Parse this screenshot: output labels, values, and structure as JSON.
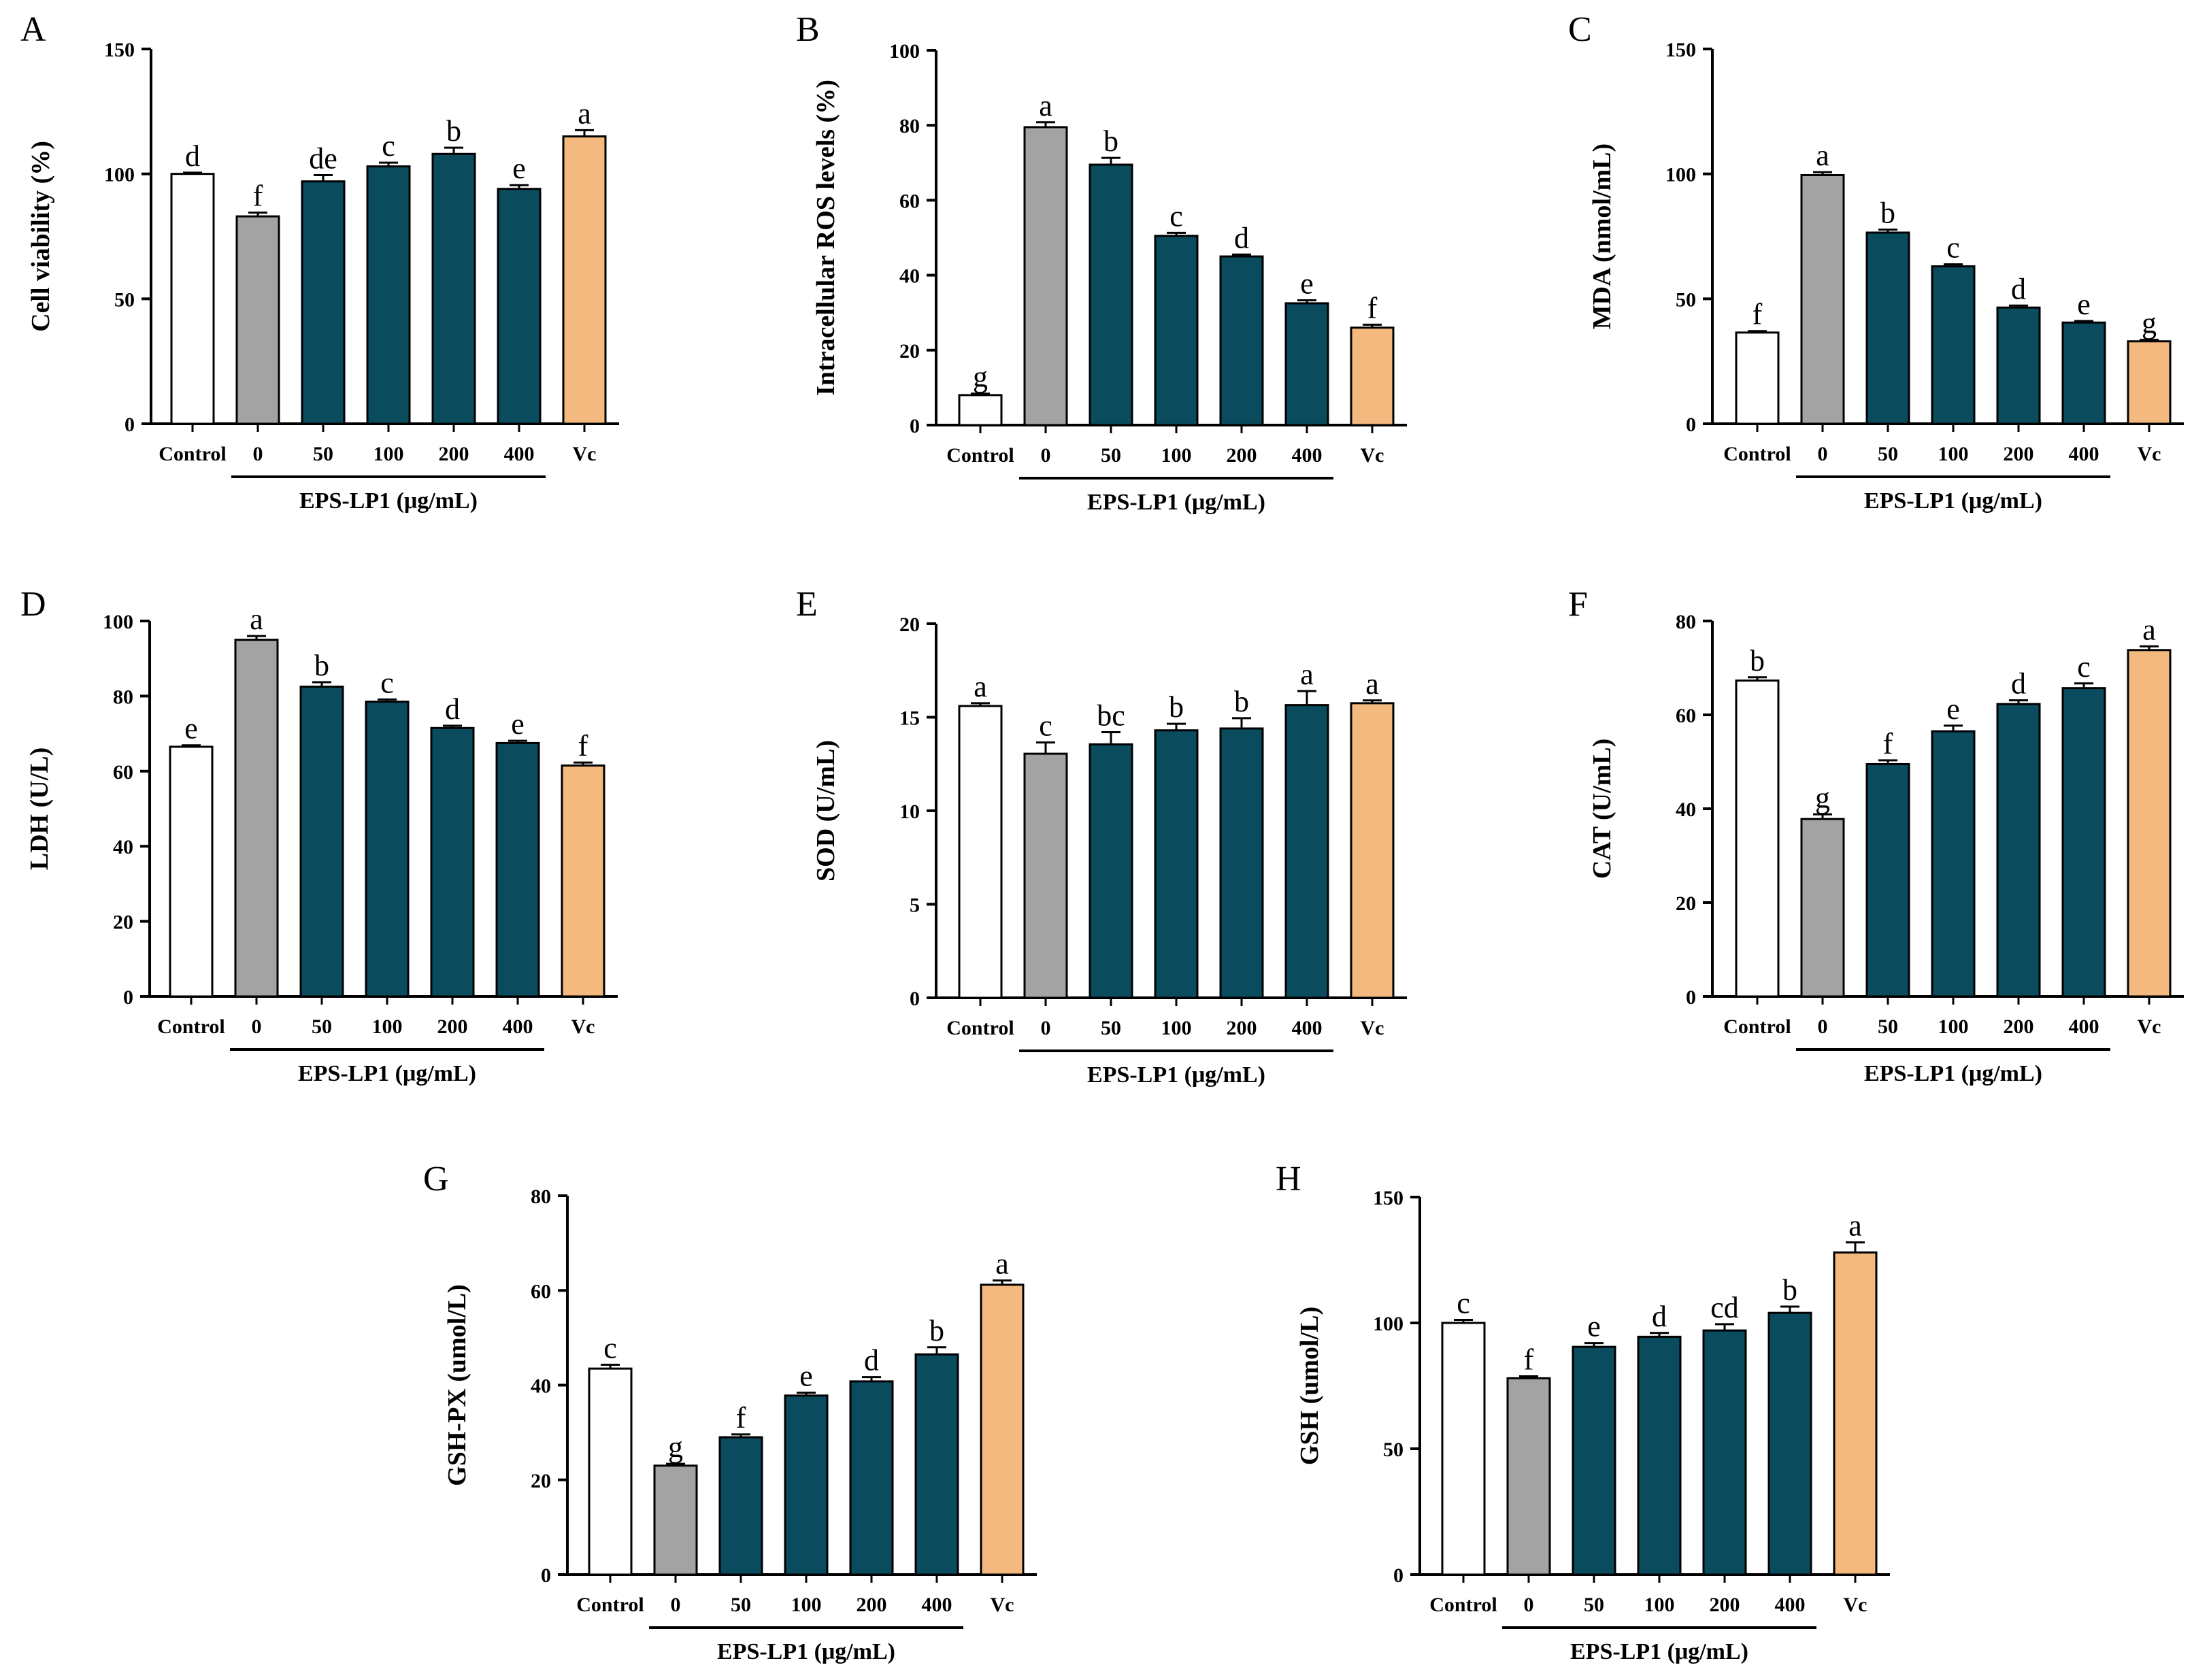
{
  "figure": {
    "group_label": "EPS-LP1 (μg/mL)",
    "colors": {
      "control": "#ffffff",
      "model": "#a3a3a3",
      "treatment": "#0a4b5e",
      "vc": "#f3b97f",
      "outline": "#000000"
    }
  },
  "chart_data": [
    {
      "type": "bar",
      "panel": "A",
      "title": "",
      "xlabel": "",
      "ylabel": "Cell viability (%)",
      "ylim": [
        0,
        150
      ],
      "yticks": [
        "0",
        "50",
        "100",
        "150"
      ],
      "categories": [
        "Control",
        "0",
        "50",
        "100",
        "200",
        "400",
        "Vc"
      ],
      "values": [
        100,
        83,
        97,
        103,
        108,
        94,
        115
      ],
      "errors": [
        0.5,
        1.5,
        2.5,
        1.5,
        2.5,
        1.5,
        2.5
      ],
      "labels": [
        "d",
        "f",
        "de",
        "c",
        "b",
        "e",
        "a"
      ]
    },
    {
      "type": "bar",
      "panel": "B",
      "title": "",
      "xlabel": "",
      "ylabel": "Intracellular ROS levels (%)",
      "ylim": [
        0,
        100
      ],
      "yticks": [
        "0",
        "20",
        "40",
        "60",
        "80",
        "100"
      ],
      "categories": [
        "Control",
        "0",
        "50",
        "100",
        "200",
        "400",
        "Vc"
      ],
      "values": [
        8,
        79.5,
        69.5,
        50.5,
        45,
        32.5,
        26
      ],
      "errors": [
        0.4,
        1.3,
        1.8,
        0.8,
        0.5,
        0.8,
        0.8
      ],
      "labels": [
        "g",
        "a",
        "b",
        "c",
        "d",
        "e",
        "f"
      ]
    },
    {
      "type": "bar",
      "panel": "C",
      "title": "",
      "xlabel": "",
      "ylabel": "MDA (nmol/mL)",
      "ylim": [
        0,
        150
      ],
      "yticks": [
        "0",
        "50",
        "100",
        "150"
      ],
      "categories": [
        "Control",
        "0",
        "50",
        "100",
        "200",
        "400",
        "Vc"
      ],
      "values": [
        36.5,
        99.5,
        76.5,
        63,
        46.5,
        40.5,
        33
      ],
      "errors": [
        0.6,
        1.2,
        1.2,
        0.8,
        0.8,
        0.6,
        0.6
      ],
      "labels": [
        "f",
        "a",
        "b",
        "c",
        "d",
        "e",
        "g"
      ]
    },
    {
      "type": "bar",
      "panel": "D",
      "title": "",
      "xlabel": "",
      "ylabel": "LDH (U/L)",
      "ylim": [
        0,
        100
      ],
      "yticks": [
        "0",
        "20",
        "40",
        "60",
        "80",
        "100"
      ],
      "categories": [
        "Control",
        "0",
        "50",
        "100",
        "200",
        "400",
        "Vc"
      ],
      "values": [
        66.5,
        95,
        82.5,
        78.5,
        71.5,
        67.5,
        61.5
      ],
      "errors": [
        0.4,
        1.0,
        1.2,
        0.6,
        0.6,
        0.6,
        0.8
      ],
      "labels": [
        "e",
        "a",
        "b",
        "c",
        "d",
        "e",
        "f"
      ]
    },
    {
      "type": "bar",
      "panel": "E",
      "title": "",
      "xlabel": "",
      "ylabel": "SOD (U/mL)",
      "ylim": [
        0,
        20
      ],
      "yticks": [
        "0",
        "5",
        "10",
        "15",
        "20"
      ],
      "categories": [
        "Control",
        "0",
        "50",
        "100",
        "200",
        "400",
        "Vc"
      ],
      "values": [
        15.6,
        13.05,
        13.55,
        14.3,
        14.4,
        15.65,
        15.75
      ],
      "errors": [
        0.15,
        0.6,
        0.65,
        0.35,
        0.55,
        0.75,
        0.15
      ],
      "labels": [
        "a",
        "c",
        "bc",
        "b",
        "b",
        "a",
        "a"
      ]
    },
    {
      "type": "bar",
      "panel": "F",
      "title": "",
      "xlabel": "",
      "ylabel": "CAT (U/mL)",
      "ylim": [
        0,
        80
      ],
      "yticks": [
        "0",
        "20",
        "40",
        "60",
        "80"
      ],
      "categories": [
        "Control",
        "0",
        "50",
        "100",
        "200",
        "400",
        "Vc"
      ],
      "values": [
        67.3,
        37.8,
        49.5,
        56.5,
        62.3,
        65.7,
        73.8
      ],
      "errors": [
        0.7,
        1.0,
        0.8,
        1.2,
        0.8,
        1.0,
        0.8
      ],
      "labels": [
        "b",
        "g",
        "f",
        "e",
        "d",
        "c",
        "a"
      ]
    },
    {
      "type": "bar",
      "panel": "G",
      "title": "",
      "xlabel": "",
      "ylabel": "GSH-PX (umol/L)",
      "ylim": [
        0,
        80
      ],
      "yticks": [
        "0",
        "20",
        "40",
        "60",
        "80"
      ],
      "categories": [
        "Control",
        "0",
        "50",
        "100",
        "200",
        "400",
        "Vc"
      ],
      "values": [
        43.5,
        23,
        29,
        37.8,
        40.8,
        46.5,
        61.2
      ],
      "errors": [
        0.8,
        0.4,
        0.6,
        0.6,
        0.9,
        1.5,
        0.9
      ],
      "labels": [
        "c",
        "g",
        "f",
        "e",
        "d",
        "b",
        "a"
      ]
    },
    {
      "type": "bar",
      "panel": "H",
      "title": "",
      "xlabel": "",
      "ylabel": "GSH (umol/L)",
      "ylim": [
        0,
        150
      ],
      "yticks": [
        "0",
        "50",
        "100",
        "150"
      ],
      "categories": [
        "Control",
        "0",
        "50",
        "100",
        "200",
        "400",
        "Vc"
      ],
      "values": [
        100,
        78,
        90.5,
        94.5,
        97,
        104,
        128
      ],
      "errors": [
        1.2,
        0.8,
        1.5,
        1.5,
        2.5,
        2.5,
        4
      ],
      "labels": [
        "c",
        "f",
        "e",
        "d",
        "cd",
        "b",
        "a"
      ]
    }
  ]
}
